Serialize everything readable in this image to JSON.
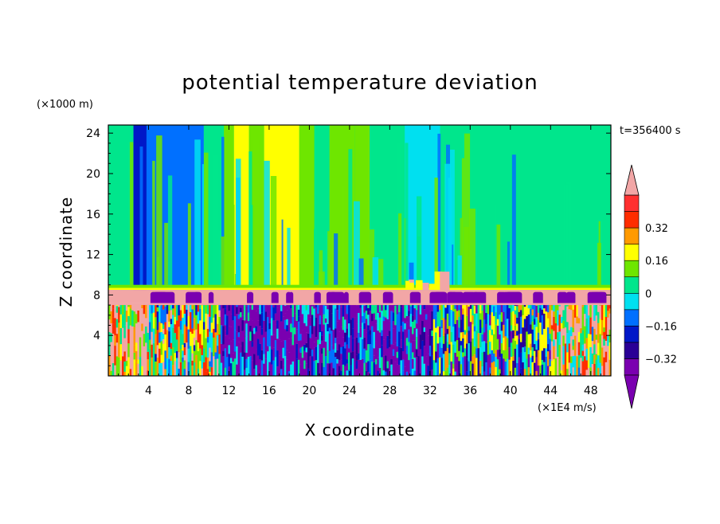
{
  "chart_data": {
    "type": "heatmap",
    "title": "potential temperature deviation",
    "xlabel": "X coordinate",
    "ylabel": "Z coordinate",
    "x_unit": "(×1E4 m/s)",
    "y_unit": "(×1000 m)",
    "time_label": "t=356400 s",
    "xlim": [
      0,
      50
    ],
    "ylim": [
      0,
      24.8
    ],
    "x_ticks": [
      4,
      8,
      12,
      16,
      20,
      24,
      28,
      32,
      36,
      40,
      44,
      48
    ],
    "y_ticks": [
      4,
      8,
      12,
      16,
      20,
      24
    ],
    "colorbar": {
      "levels": [
        -0.4,
        -0.32,
        -0.24,
        -0.16,
        -0.08,
        0,
        0.08,
        0.16,
        0.24,
        0.32,
        0.4
      ],
      "tick_labels": [
        "-0.32",
        "-0.16",
        "0",
        "0.16",
        "0.32"
      ],
      "tick_values": [
        -0.32,
        -0.16,
        0,
        0.16,
        0.32
      ],
      "colors": [
        "#7a00b0",
        "#2a0096",
        "#0018c8",
        "#0070ff",
        "#00e0f0",
        "#00e68c",
        "#6ee600",
        "#ffff00",
        "#ff9a00",
        "#ff2d00",
        "#ff3030"
      ],
      "extend_low_color": "#7a00b0",
      "extend_high_color": "#f2a6a6"
    },
    "upper_field": {
      "description_z_range": [
        9,
        24.8
      ],
      "columns": [
        {
          "x0": 0,
          "x1": 2.5,
          "value": 0.02
        },
        {
          "x0": 2.5,
          "x1": 3.8,
          "value": -0.2
        },
        {
          "x0": 3.8,
          "x1": 9.5,
          "value": -0.1
        },
        {
          "x0": 9.5,
          "x1": 11.5,
          "value": 0.03
        },
        {
          "x0": 11.5,
          "x1": 12.5,
          "value": 0.12
        },
        {
          "x0": 12.5,
          "x1": 14.0,
          "value": 0.2
        },
        {
          "x0": 14.0,
          "x1": 15.5,
          "value": 0.12
        },
        {
          "x0": 15.5,
          "x1": 19.0,
          "value": 0.22
        },
        {
          "x0": 19.0,
          "x1": 20.5,
          "value": 0.1
        },
        {
          "x0": 20.5,
          "x1": 22.0,
          "value": 0.03
        },
        {
          "x0": 22.0,
          "x1": 24.5,
          "value": 0.1
        },
        {
          "x0": 24.5,
          "x1": 26.0,
          "value": 0.14
        },
        {
          "x0": 26.0,
          "x1": 27.5,
          "value": 0.06
        },
        {
          "x0": 27.5,
          "x1": 29.5,
          "value": 0.0
        },
        {
          "x0": 29.5,
          "x1": 33.0,
          "value": -0.06
        },
        {
          "x0": 33.0,
          "x1": 44.0,
          "value": 0.0
        },
        {
          "x0": 44.0,
          "x1": 45.5,
          "value": 0.05
        },
        {
          "x0": 45.5,
          "x1": 50.0,
          "value": 0.0
        }
      ]
    },
    "boundary_layer_value": 0.4,
    "lower_field_values": [
      -0.4,
      -0.32,
      -0.16,
      0,
      0.16,
      0.32,
      0.4
    ]
  }
}
